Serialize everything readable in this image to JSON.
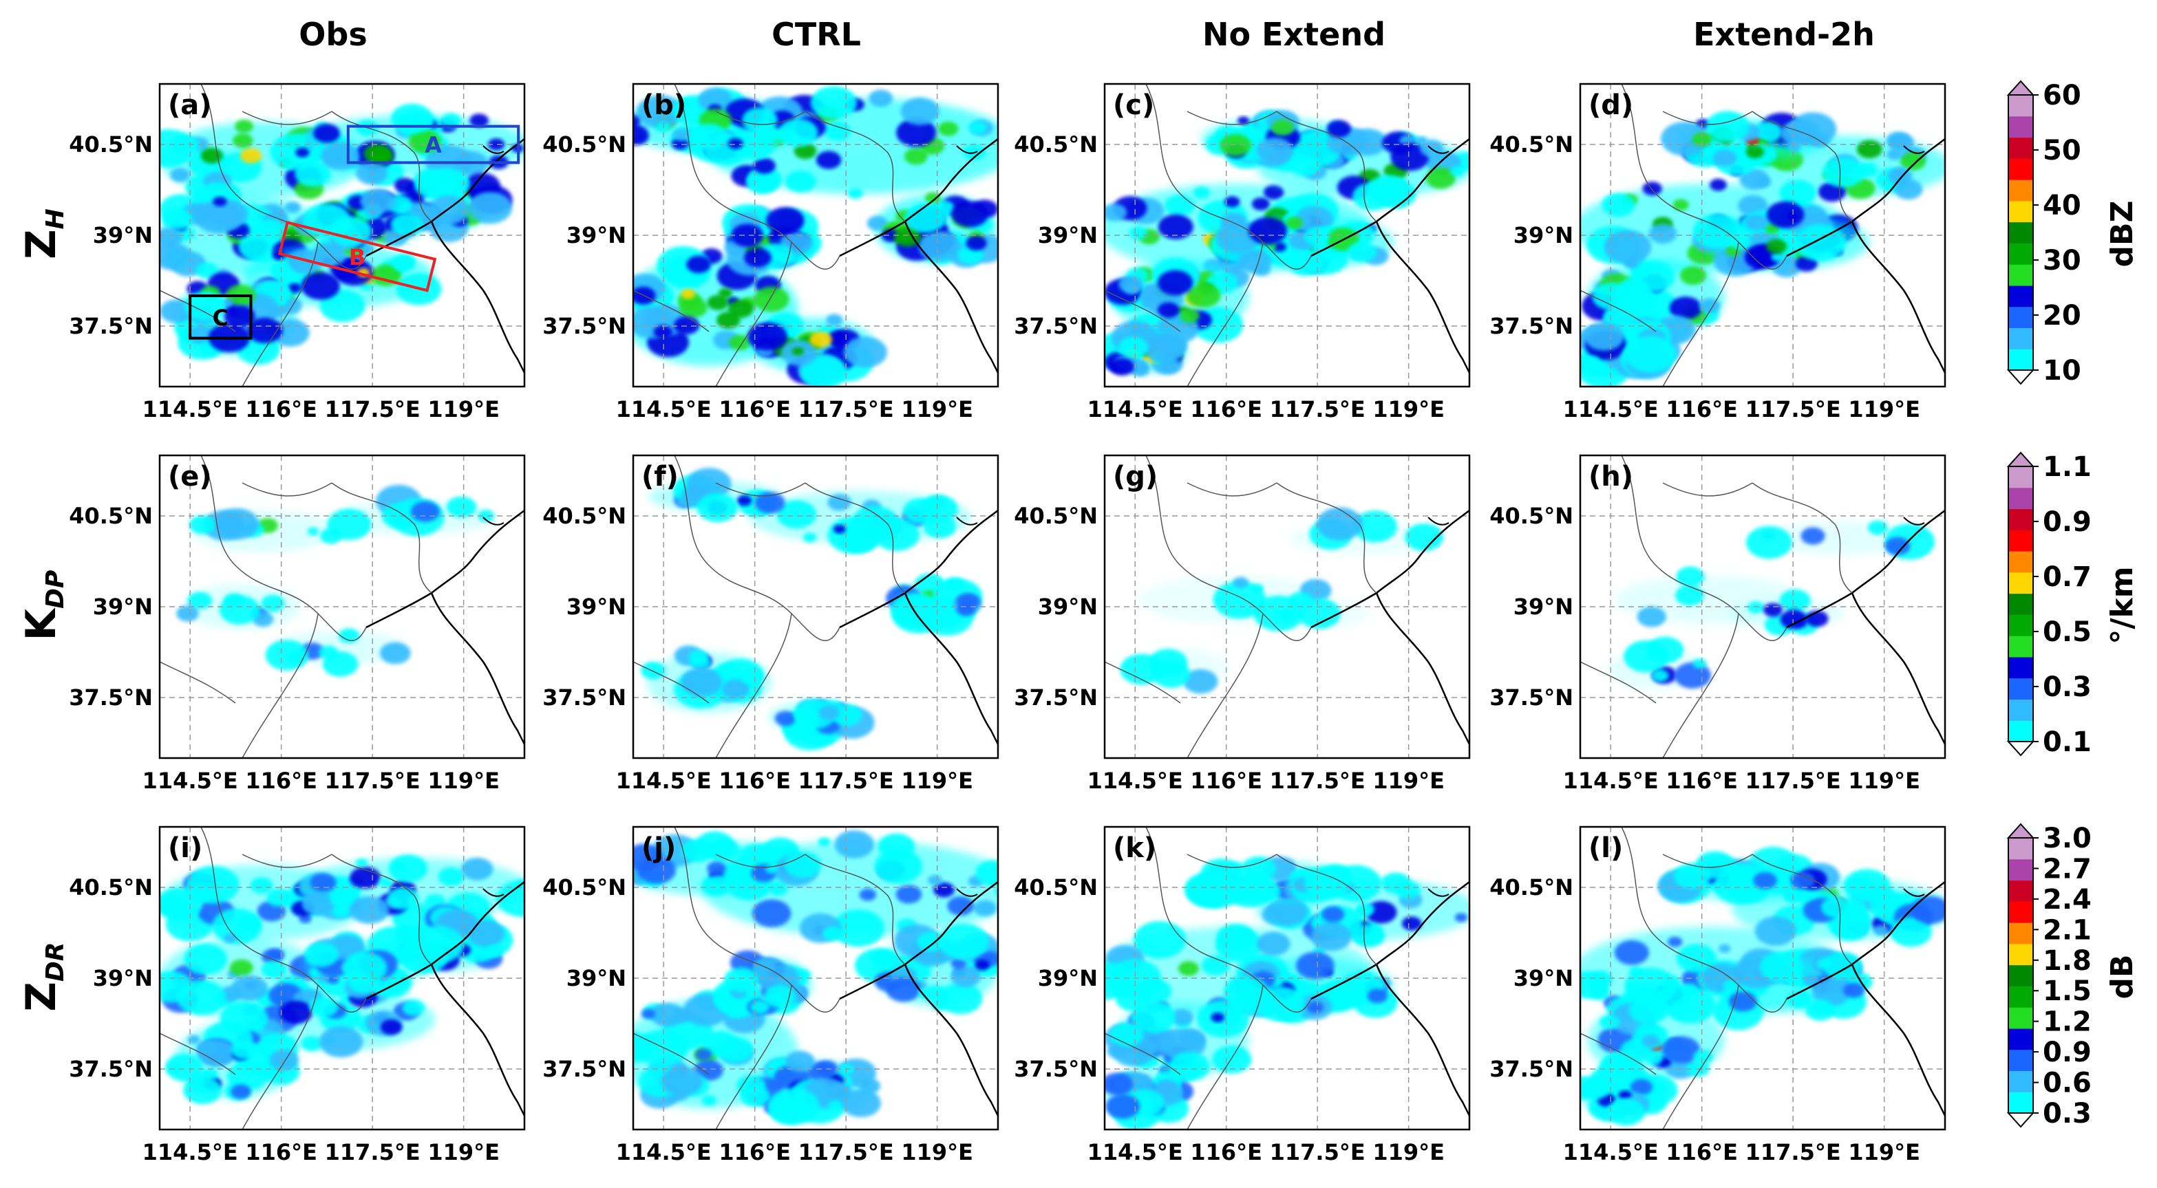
{
  "columns": [
    "Obs",
    "CTRL",
    "No Extend",
    "Extend-2h"
  ],
  "rows": [
    {
      "label": "Z",
      "sub": "H",
      "unit": "dBZ"
    },
    {
      "label": "K",
      "sub": "DP",
      "unit": "°/km"
    },
    {
      "label": "Z",
      "sub": "DR",
      "unit": "dB"
    }
  ],
  "panel_labels": [
    "(a)",
    "(b)",
    "(c)",
    "(d)",
    "(e)",
    "(f)",
    "(g)",
    "(h)",
    "(i)",
    "(j)",
    "(k)",
    "(l)"
  ],
  "lat_ticks": [
    "40.5°N",
    "39°N",
    "37.5°N"
  ],
  "lon_ticks": [
    "114.5°E",
    "116°E",
    "117.5°E",
    "119°E"
  ],
  "map_extent": {
    "lon": [
      114.0,
      120.0
    ],
    "lat": [
      36.5,
      41.5
    ]
  },
  "boxes": [
    {
      "label": "A",
      "color": "#2244cc",
      "lon": [
        117.1,
        119.9
      ],
      "lat": [
        40.2,
        40.8
      ]
    },
    {
      "label": "B",
      "color": "#ee2222",
      "lon": [
        116.0,
        118.5
      ],
      "lat": [
        38.1,
        39.2
      ]
    },
    {
      "label": "C",
      "color": "#000000",
      "lon": [
        114.5,
        115.5
      ],
      "lat": [
        37.3,
        38.0
      ]
    }
  ],
  "colorbars": [
    {
      "unit": "dBZ",
      "ticks": [
        "60",
        "50",
        "40",
        "30",
        "20",
        "10"
      ],
      "colors": [
        "#00ffff",
        "#33bbff",
        "#1a66ff",
        "#0000dd",
        "#22dd22",
        "#00aa00",
        "#008800",
        "#ffd700",
        "#ff8800",
        "#ff0000",
        "#cc0022",
        "#aa44aa",
        "#cc99cc"
      ]
    },
    {
      "unit": "°/km",
      "ticks": [
        "1.1",
        "0.9",
        "0.7",
        "0.5",
        "0.3",
        "0.1"
      ],
      "colors": [
        "#00ffff",
        "#33bbff",
        "#1a66ff",
        "#0000dd",
        "#22dd22",
        "#00aa00",
        "#008800",
        "#ffd700",
        "#ff8800",
        "#ff0000",
        "#cc0022",
        "#aa44aa",
        "#cc99cc"
      ]
    },
    {
      "unit": "dB",
      "ticks": [
        "3.0",
        "2.7",
        "2.4",
        "2.1",
        "1.8",
        "1.5",
        "1.2",
        "0.9",
        "0.6",
        "0.3"
      ],
      "colors": [
        "#00ffff",
        "#33bbff",
        "#1a66ff",
        "#0000dd",
        "#22dd22",
        "#00aa00",
        "#008800",
        "#ffd700",
        "#ff8800",
        "#ff0000",
        "#cc0022",
        "#aa44aa",
        "#cc99cc"
      ]
    }
  ]
}
